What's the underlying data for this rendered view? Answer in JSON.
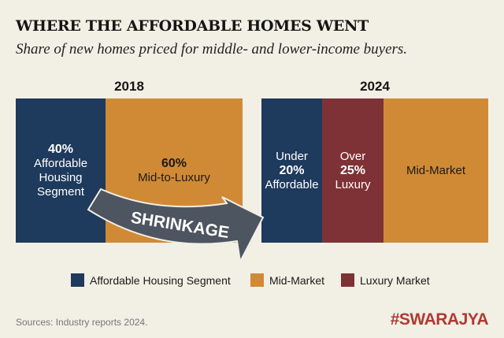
{
  "title": "WHERE THE AFFORDABLE HOMES WENT",
  "subtitle": "Share of new homes priced for middle- and lower-income buyers.",
  "chart_data": {
    "type": "stacked-bar",
    "title": "WHERE THE AFFORDABLE HOMES WENT",
    "subtitle": "Share of new homes priced for middle- and lower-income buyers.",
    "categories": [
      "2018",
      "2024"
    ],
    "bars": [
      {
        "year": "2018",
        "segments": [
          {
            "pct": "40%",
            "label": "Affordable Housing Segment",
            "value": 40,
            "color": "#1e3a5c"
          },
          {
            "pct": "60%",
            "label": "Mid-to-Luxury",
            "value": 60,
            "color": "#d08a35"
          }
        ]
      },
      {
        "year": "2024",
        "segments": [
          {
            "prefix": "Under",
            "pct": "20%",
            "label": "Affordable",
            "value": 20,
            "color": "#1e3a5c"
          },
          {
            "prefix": "Over",
            "pct": "25%",
            "label": "Luxury",
            "value": 25,
            "color": "#7e3236"
          },
          {
            "label": "Mid-Market",
            "color": "#d08a35"
          }
        ]
      }
    ],
    "annotation": "SHRINKAGE",
    "legend": [
      {
        "label": "Affordable Housing Segment",
        "color": "#1e3a5c"
      },
      {
        "label": "Mid-Market",
        "color": "#d08a35"
      },
      {
        "label": "Luxury Market",
        "color": "#7e3236"
      }
    ],
    "legend_position": "bottom"
  },
  "source": "Sources: Industry reports 2024.",
  "brand": "#SWARAJYA"
}
